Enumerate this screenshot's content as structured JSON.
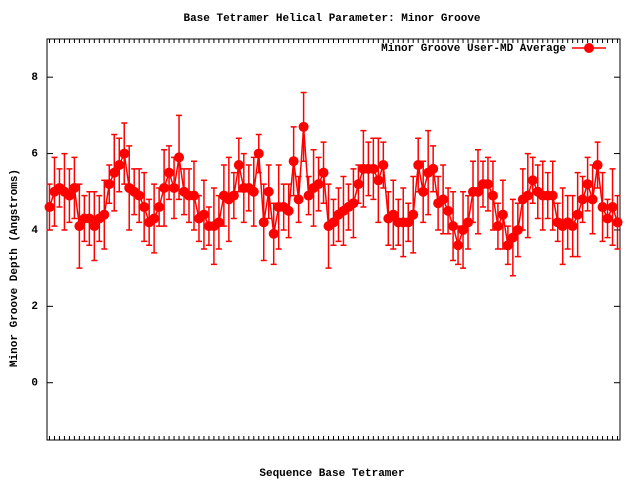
{
  "chart_data": {
    "type": "line",
    "title": "Base Tetramer Helical Parameter: Minor Groove",
    "x_label": "Sequence Base Tetramer",
    "y_label": "Minor Groove Depth (Angstroms)",
    "ylim": [
      -1.5,
      9
    ],
    "yticks": [
      0,
      2,
      4,
      6,
      8
    ],
    "grid": false,
    "legend": "top-right",
    "categories": [
      null,
      null,
      null,
      null,
      null,
      null,
      null,
      null,
      null,
      null,
      null,
      null,
      null,
      null,
      null,
      null,
      null,
      null,
      null,
      null,
      null,
      null,
      null,
      null,
      null,
      null,
      null,
      null,
      null,
      null,
      null,
      null,
      null,
      null,
      null,
      null,
      null,
      null,
      null,
      null,
      null,
      null,
      null,
      null,
      null,
      null,
      null,
      null,
      null,
      null,
      null,
      null,
      null,
      null,
      null,
      null,
      null,
      null,
      null,
      null,
      null,
      null,
      null,
      null,
      null,
      null,
      null,
      null,
      null,
      null,
      null,
      null,
      null,
      null,
      null,
      null,
      null,
      null,
      null,
      null,
      null,
      null,
      null,
      null,
      null,
      null,
      null,
      null,
      null,
      null,
      null,
      null,
      null,
      null,
      null,
      null,
      null,
      null,
      null,
      null,
      null,
      null,
      null,
      null,
      null,
      null,
      null,
      null,
      null,
      null,
      null,
      null,
      null,
      null,
      null
    ],
    "series": [
      {
        "name": "Minor Groove User-MD Average",
        "color": "#ff0000",
        "values": [
          4.6,
          5.0,
          5.1,
          5.0,
          4.9,
          5.1,
          4.1,
          4.3,
          4.3,
          4.1,
          4.3,
          4.4,
          5.2,
          5.5,
          5.7,
          6.0,
          5.1,
          5.0,
          4.9,
          4.6,
          4.2,
          4.3,
          4.6,
          5.1,
          5.5,
          5.1,
          5.9,
          5.0,
          4.9,
          4.9,
          4.3,
          4.4,
          4.1,
          4.1,
          4.2,
          4.9,
          4.8,
          4.9,
          5.7,
          5.1,
          5.1,
          5.0,
          6.0,
          4.2,
          5.0,
          3.9,
          4.6,
          4.6,
          4.5,
          5.8,
          4.8,
          6.7,
          4.9,
          5.1,
          5.2,
          5.5,
          4.1,
          4.2,
          4.4,
          4.5,
          4.6,
          4.7,
          5.2,
          5.6,
          5.6,
          5.6,
          5.3,
          5.7,
          4.3,
          4.4,
          4.2,
          4.2,
          4.2,
          4.4,
          5.7,
          5.0,
          5.5,
          5.6,
          4.7,
          4.8,
          4.5,
          4.1,
          3.6,
          4.0,
          4.2,
          5.0,
          5.0,
          5.2,
          5.2,
          4.9,
          4.1,
          4.4,
          3.6,
          3.8,
          4.0,
          4.8,
          4.9,
          5.3,
          5.0,
          4.9,
          4.9,
          4.9,
          4.2,
          4.1,
          4.2,
          4.1,
          4.4,
          4.8,
          5.2,
          4.8,
          5.7,
          4.6,
          4.3,
          4.6,
          4.2
        ],
        "errors": [
          0.6,
          0.9,
          0.5,
          1.0,
          0.7,
          0.8,
          1.1,
          0.6,
          0.7,
          0.9,
          0.6,
          0.9,
          0.5,
          1.0,
          0.7,
          0.8,
          1.1,
          0.6,
          0.7,
          0.9,
          0.6,
          0.9,
          0.5,
          1.0,
          0.7,
          0.8,
          1.1,
          0.6,
          0.7,
          0.9,
          0.6,
          0.9,
          0.5,
          1.0,
          0.7,
          0.8,
          1.1,
          0.6,
          0.7,
          0.9,
          0.6,
          0.9,
          0.5,
          1.0,
          0.7,
          0.8,
          1.1,
          0.6,
          0.7,
          0.9,
          0.6,
          0.9,
          0.5,
          1.0,
          0.7,
          0.8,
          1.1,
          0.6,
          0.7,
          0.9,
          0.6,
          0.9,
          0.5,
          1.0,
          0.7,
          0.8,
          1.1,
          0.6,
          0.7,
          0.9,
          0.6,
          0.9,
          0.5,
          1.0,
          0.7,
          0.8,
          1.1,
          0.6,
          0.7,
          0.9,
          0.6,
          0.9,
          0.5,
          1.0,
          0.7,
          0.8,
          1.1,
          0.6,
          0.7,
          0.9,
          0.6,
          0.9,
          0.5,
          1.0,
          0.7,
          0.8,
          1.1,
          0.6,
          0.7,
          0.9,
          0.6,
          0.9,
          0.5,
          1.0,
          0.7,
          0.8,
          1.1,
          0.6,
          0.7,
          0.9,
          0.6,
          0.9,
          0.5,
          1.0,
          0.7
        ]
      }
    ]
  }
}
